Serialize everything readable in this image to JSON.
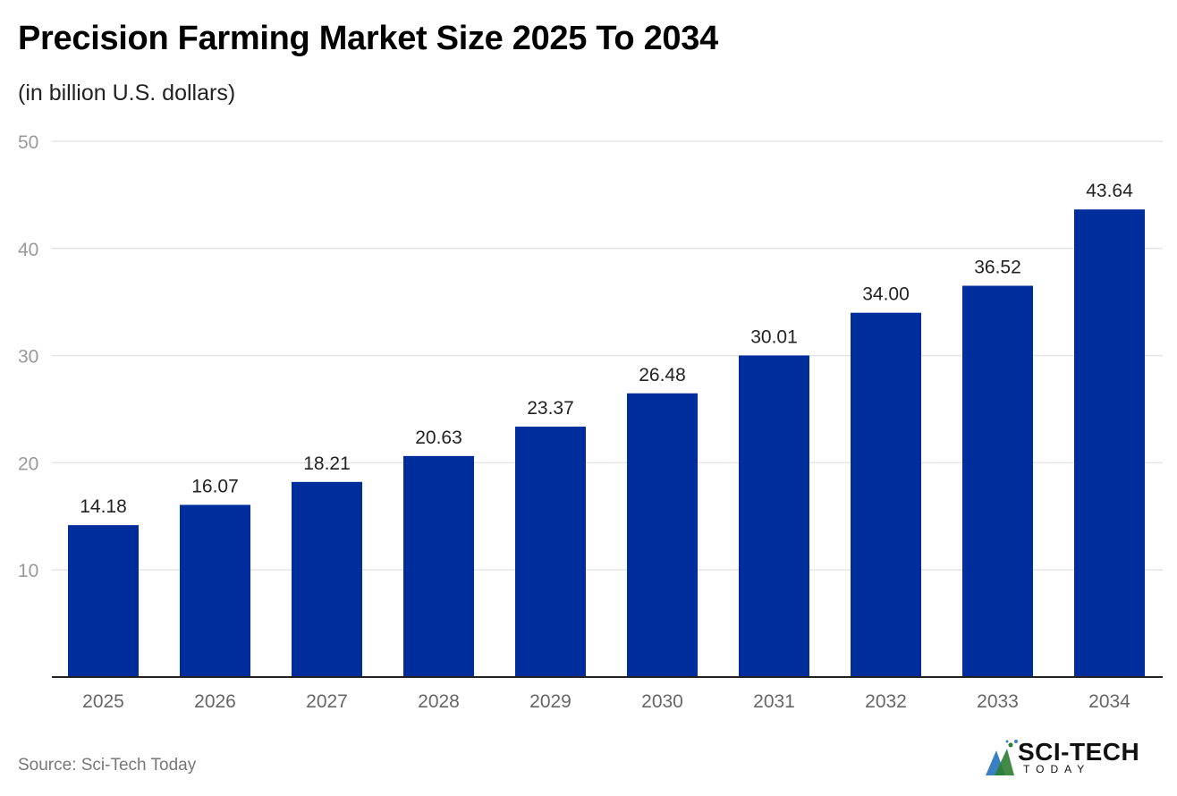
{
  "title": "Precision Farming Market Size 2025 To 2034",
  "subtitle": "(in billion U.S. dollars)",
  "source": "Source: Sci-Tech Today",
  "logo": {
    "main": "SCI-TECH",
    "sub": "TODAY"
  },
  "colors": {
    "bar": "#002d9c",
    "grid": "#e5e5e5",
    "axis": "#222222",
    "tick": "#999999"
  },
  "chart_data": {
    "type": "bar",
    "title": "Precision Farming Market Size 2025 To 2034",
    "subtitle": "(in billion U.S. dollars)",
    "categories": [
      "2025",
      "2026",
      "2027",
      "2028",
      "2029",
      "2030",
      "2031",
      "2032",
      "2033",
      "2034"
    ],
    "values": [
      14.18,
      16.07,
      18.21,
      20.63,
      23.37,
      26.48,
      30.01,
      34.0,
      36.52,
      43.64
    ],
    "labels": [
      "14.18",
      "16.07",
      "18.21",
      "20.63",
      "23.37",
      "26.48",
      "30.01",
      "34.00",
      "36.52",
      "43.64"
    ],
    "ylim": [
      0,
      50
    ],
    "yticks": [
      10,
      20,
      30,
      40,
      50
    ],
    "grid": true,
    "xlabel": "",
    "ylabel": ""
  }
}
